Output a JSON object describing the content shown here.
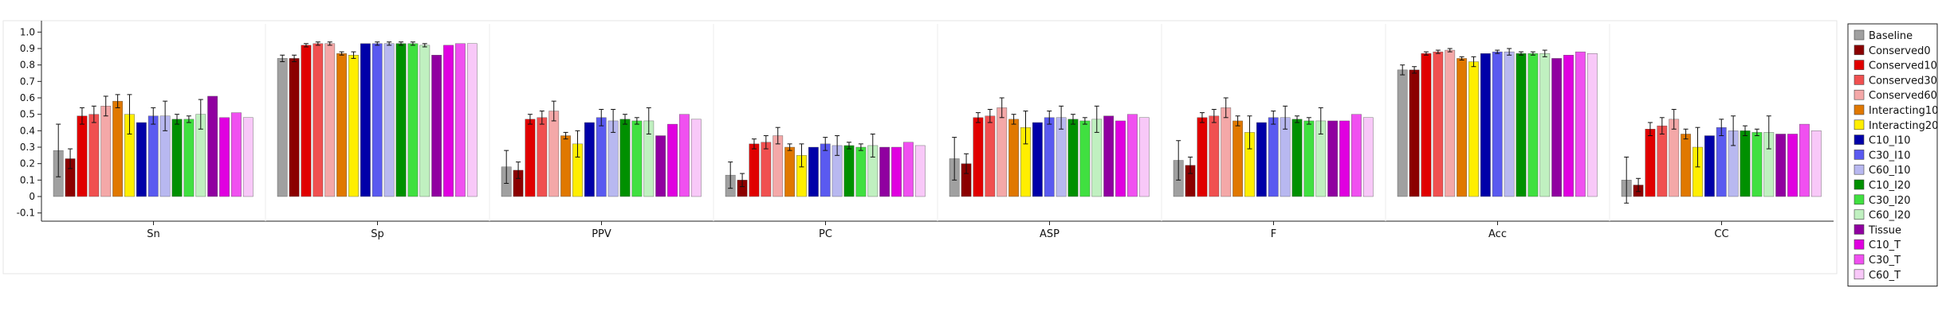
{
  "chart_data": {
    "type": "bar",
    "title": "",
    "xlabel": "",
    "ylabel": "",
    "ylim": [
      -0.15,
      1.05
    ],
    "yticks": [
      "1.0",
      "0.9",
      "0.8",
      "0.7",
      "0.6",
      "0.5",
      "0.4",
      "0.3",
      "0.2",
      "0.1",
      "0",
      "-0.1"
    ],
    "yticks_values": [
      1.0,
      0.9,
      0.8,
      0.7,
      0.6,
      0.5,
      0.4,
      0.3,
      0.2,
      0.1,
      0,
      -0.1
    ],
    "grid": false,
    "legend_position": "right",
    "categories": [
      "Sn",
      "Sp",
      "PPV",
      "PC",
      "ASP",
      "F",
      "Acc",
      "CC"
    ],
    "series": [
      {
        "name": "Baseline",
        "color": "#a0a0a0",
        "values": [
          0.28,
          0.84,
          0.18,
          0.13,
          0.23,
          0.22,
          0.77,
          0.1
        ],
        "errors": [
          0.16,
          0.02,
          0.1,
          0.08,
          0.13,
          0.12,
          0.03,
          0.14
        ]
      },
      {
        "name": "Conserved0",
        "color": "#8b0000",
        "values": [
          0.23,
          0.84,
          0.16,
          0.1,
          0.2,
          0.19,
          0.77,
          0.07
        ],
        "errors": [
          0.06,
          0.02,
          0.05,
          0.04,
          0.06,
          0.05,
          0.02,
          0.04
        ]
      },
      {
        "name": "Conserved10",
        "color": "#e00000",
        "values": [
          0.49,
          0.92,
          0.47,
          0.32,
          0.48,
          0.48,
          0.87,
          0.41
        ],
        "errors": [
          0.05,
          0.01,
          0.03,
          0.03,
          0.03,
          0.03,
          0.01,
          0.04
        ]
      },
      {
        "name": "Conserved30",
        "color": "#f05050",
        "values": [
          0.5,
          0.93,
          0.48,
          0.33,
          0.49,
          0.49,
          0.88,
          0.43
        ],
        "errors": [
          0.05,
          0.01,
          0.04,
          0.04,
          0.04,
          0.04,
          0.01,
          0.05
        ]
      },
      {
        "name": "Conserved60",
        "color": "#f4a8a8",
        "values": [
          0.55,
          0.93,
          0.52,
          0.37,
          0.54,
          0.54,
          0.89,
          0.47
        ],
        "errors": [
          0.06,
          0.01,
          0.06,
          0.05,
          0.06,
          0.06,
          0.01,
          0.06
        ]
      },
      {
        "name": "Interacting10",
        "color": "#e07800",
        "values": [
          0.58,
          0.87,
          0.37,
          0.3,
          0.47,
          0.46,
          0.84,
          0.38
        ],
        "errors": [
          0.04,
          0.01,
          0.02,
          0.02,
          0.03,
          0.03,
          0.01,
          0.03
        ]
      },
      {
        "name": "Interacting20",
        "color": "#ffee00",
        "values": [
          0.5,
          0.86,
          0.32,
          0.25,
          0.42,
          0.39,
          0.82,
          0.3
        ],
        "errors": [
          0.12,
          0.02,
          0.08,
          0.07,
          0.1,
          0.1,
          0.03,
          0.12
        ]
      },
      {
        "name": "C10_I10",
        "color": "#0000a8",
        "values": [
          0.45,
          0.93,
          0.45,
          0.3,
          0.45,
          0.45,
          0.87,
          0.37
        ],
        "errors": [
          0,
          0,
          0,
          0,
          0,
          0,
          0,
          0
        ]
      },
      {
        "name": "C30_I10",
        "color": "#5a5af0",
        "values": [
          0.49,
          0.93,
          0.48,
          0.32,
          0.48,
          0.48,
          0.88,
          0.42
        ],
        "errors": [
          0.05,
          0.01,
          0.05,
          0.04,
          0.04,
          0.04,
          0.01,
          0.05
        ]
      },
      {
        "name": "C60_I10",
        "color": "#b8b8f0",
        "values": [
          0.49,
          0.93,
          0.46,
          0.31,
          0.48,
          0.48,
          0.88,
          0.4
        ],
        "errors": [
          0.09,
          0.01,
          0.07,
          0.06,
          0.07,
          0.07,
          0.02,
          0.09
        ]
      },
      {
        "name": "C10_I20",
        "color": "#009000",
        "values": [
          0.47,
          0.93,
          0.47,
          0.31,
          0.47,
          0.47,
          0.87,
          0.4
        ],
        "errors": [
          0.03,
          0.01,
          0.03,
          0.02,
          0.03,
          0.02,
          0.01,
          0.03
        ]
      },
      {
        "name": "C30_I20",
        "color": "#40e040",
        "values": [
          0.47,
          0.93,
          0.46,
          0.3,
          0.46,
          0.46,
          0.87,
          0.39
        ],
        "errors": [
          0.02,
          0.01,
          0.02,
          0.02,
          0.02,
          0.02,
          0.01,
          0.02
        ]
      },
      {
        "name": "C60_I20",
        "color": "#c0f0c0",
        "values": [
          0.5,
          0.92,
          0.46,
          0.31,
          0.47,
          0.46,
          0.87,
          0.39
        ],
        "errors": [
          0.09,
          0.01,
          0.08,
          0.07,
          0.08,
          0.08,
          0.02,
          0.1
        ]
      },
      {
        "name": "Tissue",
        "color": "#9000a0",
        "values": [
          0.61,
          0.86,
          0.37,
          0.3,
          0.49,
          0.46,
          0.84,
          0.38
        ],
        "errors": [
          0,
          0,
          0,
          0,
          0,
          0,
          0,
          0
        ]
      },
      {
        "name": "C10_T",
        "color": "#e000e0",
        "values": [
          0.48,
          0.92,
          0.44,
          0.3,
          0.46,
          0.46,
          0.86,
          0.38
        ],
        "errors": [
          0,
          0,
          0,
          0,
          0,
          0,
          0,
          0
        ]
      },
      {
        "name": "C30_T",
        "color": "#f050f0",
        "values": [
          0.51,
          0.93,
          0.5,
          0.33,
          0.5,
          0.5,
          0.88,
          0.44
        ],
        "errors": [
          0,
          0,
          0,
          0,
          0,
          0,
          0,
          0
        ]
      },
      {
        "name": "C60_T",
        "color": "#f8c8f8",
        "values": [
          0.48,
          0.93,
          0.47,
          0.31,
          0.48,
          0.48,
          0.87,
          0.4
        ],
        "errors": [
          0,
          0,
          0,
          0,
          0,
          0,
          0,
          0
        ]
      }
    ]
  }
}
